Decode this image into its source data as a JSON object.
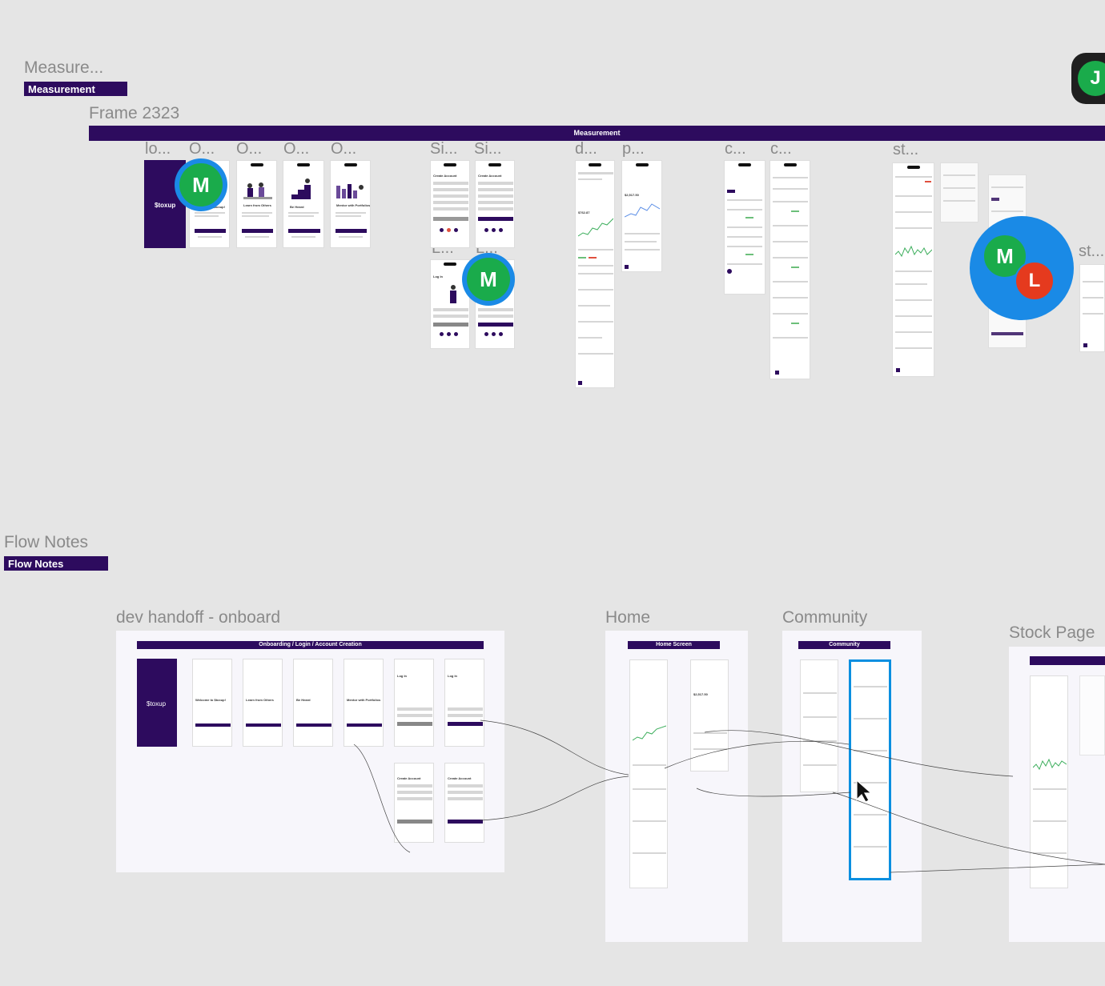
{
  "canvas": {
    "measurement_group": {
      "title": "Measure...",
      "tag": "Measurement"
    },
    "frame_2323": {
      "title": "Frame 2323",
      "bar_label": "Measurement"
    },
    "frame_labels": [
      "lo...",
      "O...",
      "O...",
      "O...",
      "O...",
      "Si...",
      "Si...",
      "L...",
      "L...",
      "d...",
      "p...",
      "c...",
      "c...",
      "st...",
      "st..."
    ],
    "flow_notes_group": {
      "title": "Flow Notes",
      "tag": "Flow Notes"
    },
    "boards": {
      "onboard": {
        "title": "dev handoff - onboard",
        "banner": "Onboarding / Login / Account Creation"
      },
      "home": {
        "title": "Home",
        "banner": "Home Screen"
      },
      "community": {
        "title": "Community",
        "banner": "Community"
      },
      "stock": {
        "title": "Stock Page"
      }
    },
    "mini_screens": {
      "brand": "$toxup",
      "welcome": "Welcome to $toxup!",
      "learn": "Learn from Others",
      "be_heard": "Be Heard",
      "mentor": "Mentor with Portfolios",
      "create_account": "Create Account",
      "login": "Log In",
      "price_a": "$2,517.50",
      "price_b": "$762.87"
    }
  },
  "collaborators": [
    {
      "initial": "M",
      "color": "#1aab4b",
      "ring": "#1a8ae6"
    },
    {
      "initial": "M",
      "color": "#1aab4b",
      "ring": "#1a8ae6"
    },
    {
      "initial": "M",
      "color": "#1aab4b",
      "ring": "#1a8ae6"
    },
    {
      "initial": "L",
      "color": "#e53a1e",
      "ring": "#1a8ae6"
    },
    {
      "initial": "J",
      "color": "#1aab4b",
      "ring": "#1a1a1a"
    }
  ],
  "colors": {
    "brand": "#2d0b5e",
    "selection": "#0b8fe0",
    "canvas": "#e5e5e5"
  }
}
